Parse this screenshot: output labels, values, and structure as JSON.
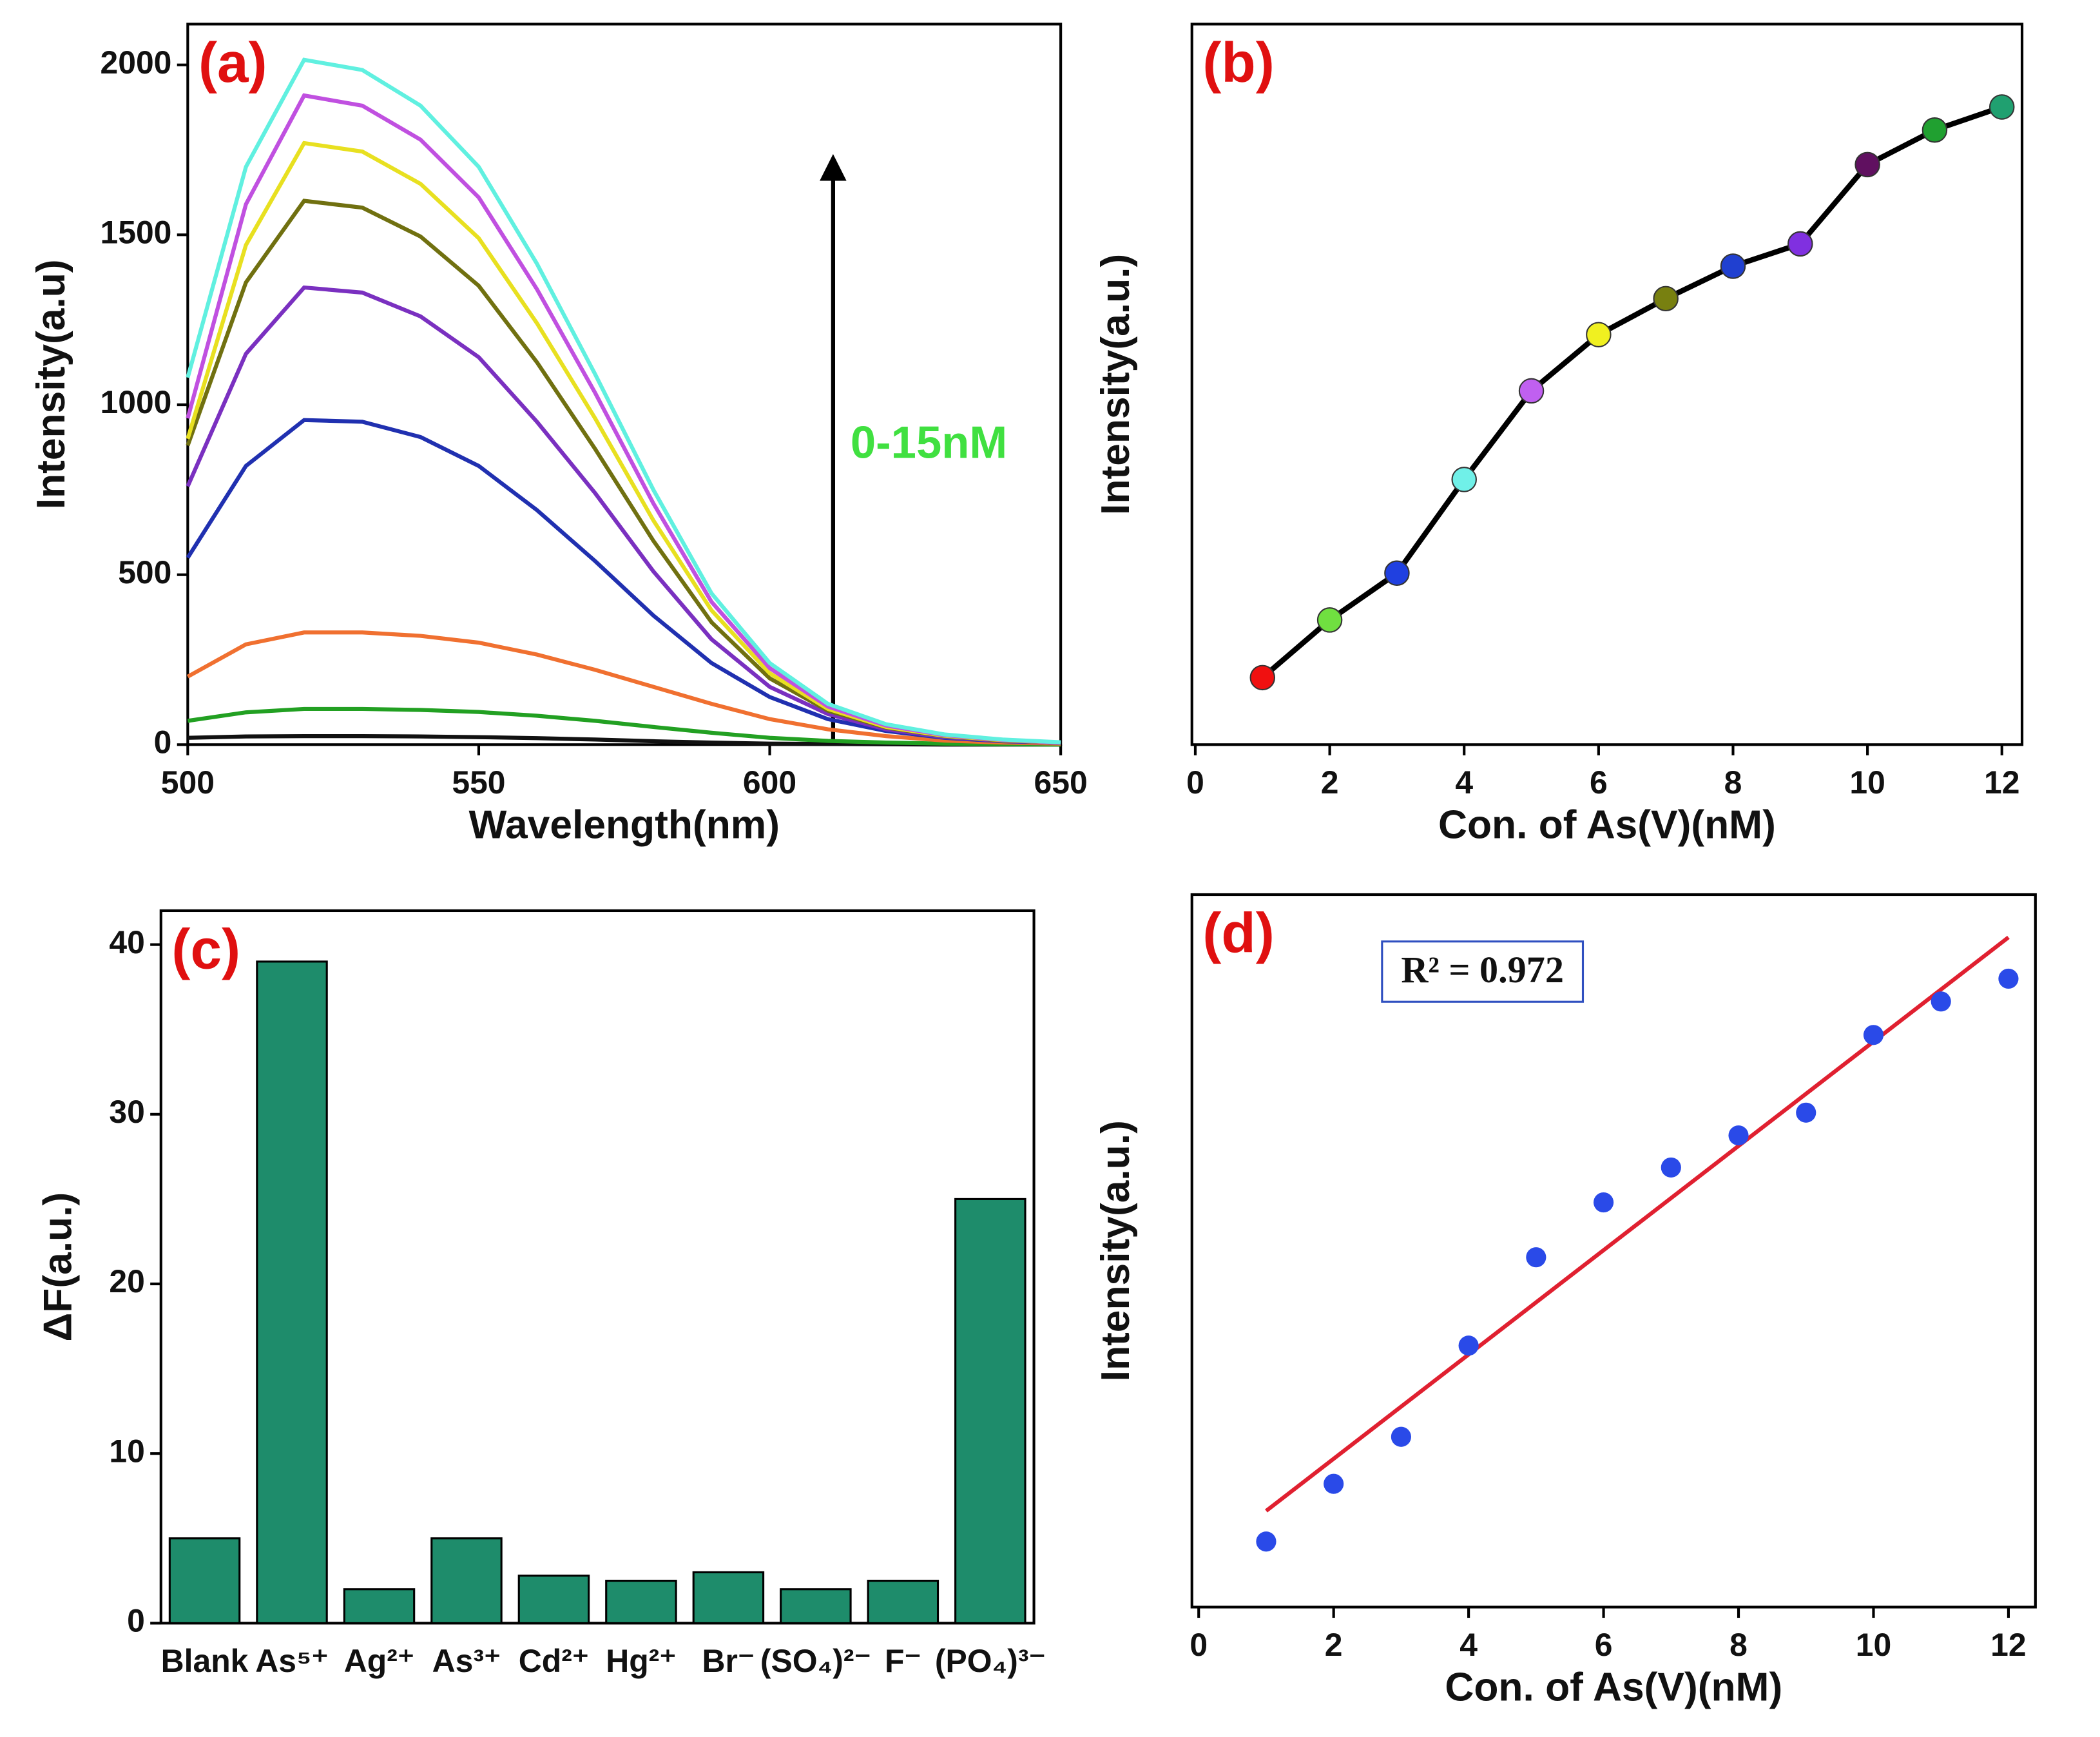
{
  "chart_data": [
    {
      "type": "line",
      "label": "(a)",
      "xlabel": "Wavelength(nm)",
      "ylabel": "Intensity(a.u)",
      "annotation": "0-15nM",
      "xlim": [
        500,
        650
      ],
      "xticks": [
        500,
        550,
        600,
        650
      ],
      "ylim": [
        0,
        2120
      ],
      "yticks": [
        0,
        500,
        1000,
        1500,
        2000
      ],
      "x": [
        500,
        510,
        520,
        530,
        540,
        550,
        560,
        570,
        580,
        590,
        600,
        610,
        620,
        630,
        640,
        650
      ],
      "series": [
        {
          "color": "#111111",
          "values": [
            20,
            24,
            25,
            25,
            24,
            22,
            19,
            15,
            10,
            6,
            3,
            2,
            1,
            0,
            0,
            0
          ]
        },
        {
          "color": "#22a022",
          "values": [
            70,
            95,
            105,
            105,
            102,
            96,
            85,
            70,
            52,
            35,
            20,
            11,
            6,
            3,
            1,
            0
          ]
        },
        {
          "color": "#f07030",
          "values": [
            200,
            295,
            330,
            330,
            320,
            300,
            265,
            220,
            170,
            120,
            75,
            45,
            25,
            12,
            6,
            3
          ]
        },
        {
          "color": "#2030b0",
          "values": [
            550,
            820,
            955,
            950,
            905,
            820,
            690,
            540,
            380,
            240,
            140,
            75,
            40,
            20,
            10,
            5
          ]
        },
        {
          "color": "#7a30c0",
          "values": [
            760,
            1150,
            1345,
            1330,
            1260,
            1140,
            950,
            740,
            510,
            310,
            170,
            90,
            45,
            22,
            11,
            5
          ]
        },
        {
          "color": "#707010",
          "values": [
            880,
            1360,
            1600,
            1580,
            1495,
            1350,
            1125,
            870,
            600,
            360,
            195,
            100,
            50,
            25,
            12,
            6
          ]
        },
        {
          "color": "#e8e020",
          "values": [
            900,
            1470,
            1770,
            1745,
            1650,
            1490,
            1240,
            960,
            660,
            395,
            210,
            105,
            52,
            26,
            13,
            6
          ]
        },
        {
          "color": "#c050e0",
          "values": [
            960,
            1590,
            1910,
            1880,
            1780,
            1610,
            1340,
            1035,
            710,
            420,
            225,
            112,
            56,
            28,
            14,
            6
          ]
        },
        {
          "color": "#60f0e0",
          "values": [
            1080,
            1700,
            2015,
            1985,
            1880,
            1700,
            1415,
            1090,
            750,
            445,
            240,
            120,
            60,
            30,
            15,
            7
          ]
        }
      ]
    },
    {
      "type": "line",
      "label": "(b)",
      "xlabel": "Con. of As(V)(nM)",
      "ylabel": "Intensity(a.u.)",
      "xlim": [
        -0.05,
        12.3
      ],
      "xticks": [
        0,
        2,
        4,
        6,
        8,
        10,
        12
      ],
      "ylim": [
        0,
        100
      ],
      "color": "#000000",
      "x": [
        1,
        2,
        3,
        4,
        5,
        6,
        7,
        8,
        9,
        10,
        11,
        12
      ],
      "values": [
        9.3,
        17.3,
        23.8,
        36.8,
        49.1,
        56.9,
        61.9,
        66.4,
        69.5,
        80.5,
        85.3,
        88.5
      ],
      "marker_colors": [
        "#f01010",
        "#70e040",
        "#2040e0",
        "#70f0e8",
        "#c060f0",
        "#f0f020",
        "#788010",
        "#2040d0",
        "#8030e0",
        "#601060",
        "#20a030",
        "#20a070"
      ]
    },
    {
      "type": "bar",
      "label": "(c)",
      "ylabel": "ΔF(a.u.)",
      "color": "#1e8c6b",
      "categories": [
        "Blank",
        "As⁵⁺",
        "Ag²⁺",
        "As³⁺",
        "Cd²⁺",
        "Hg²⁺",
        "Br⁻",
        "(SO₄)²⁻",
        "F⁻",
        "(PO₄)³⁻"
      ],
      "values": [
        5,
        39,
        2,
        5,
        2.8,
        2.5,
        3,
        2,
        2.5,
        25
      ],
      "ylim": [
        0,
        42
      ],
      "yticks": [
        0,
        10,
        20,
        30,
        40
      ]
    },
    {
      "type": "scatter",
      "label": "(d)",
      "xlabel": "Con. of As(V)(nM)",
      "ylabel": "Intensity(a.u.)",
      "annotation": "R² = 0.972",
      "xlim": [
        -0.1,
        12.4
      ],
      "xticks": [
        0,
        2,
        4,
        6,
        8,
        10,
        12
      ],
      "ylim": [
        0,
        100
      ],
      "color": "#2a4ae8",
      "x": [
        1,
        2,
        3,
        4,
        5,
        6,
        7,
        8,
        9,
        10,
        11,
        12
      ],
      "values": [
        9.2,
        17.3,
        23.9,
        36.7,
        49.1,
        56.8,
        61.7,
        66.2,
        69.4,
        80.3,
        85.0,
        88.2
      ],
      "fit": {
        "color": "#e02030",
        "x": [
          1,
          12
        ],
        "values": [
          13.5,
          94
        ]
      }
    }
  ]
}
